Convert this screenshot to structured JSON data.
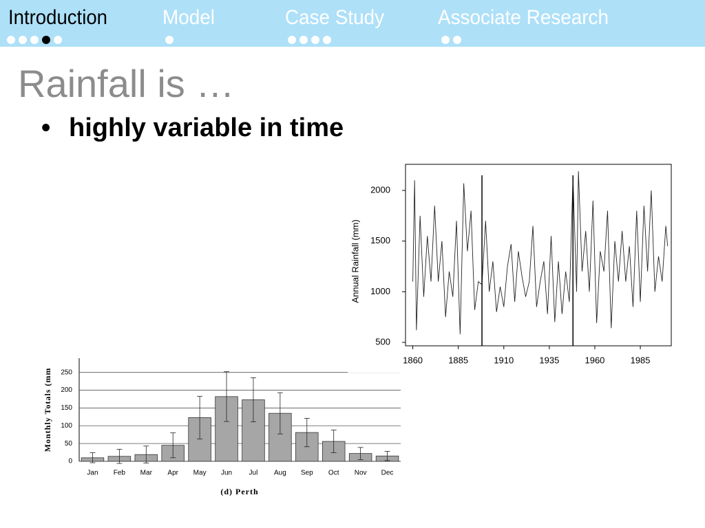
{
  "nav": [
    {
      "label": "Introduction"
    },
    {
      "label": "Model"
    },
    {
      "label": "Case Study"
    },
    {
      "label": "Associate Research"
    }
  ],
  "slide": {
    "title": "Rainfall is …",
    "bullet": "highly variable in time"
  },
  "chart_data": [
    {
      "type": "line",
      "y_label": "Annual Rainfall (mm)",
      "color": "#222222",
      "x": [
        1860,
        1861,
        1862,
        1864,
        1866,
        1868,
        1870,
        1872,
        1874,
        1876,
        1878,
        1880,
        1882,
        1884,
        1886,
        1888,
        1890,
        1892,
        1894,
        1896,
        1898,
        1900,
        1902,
        1904,
        1906,
        1908,
        1910,
        1912,
        1914,
        1916,
        1918,
        1920,
        1922,
        1924,
        1926,
        1928,
        1930,
        1932,
        1934,
        1936,
        1938,
        1940,
        1942,
        1944,
        1946,
        1948,
        1950,
        1951,
        1953,
        1955,
        1957,
        1959,
        1961,
        1963,
        1965,
        1967,
        1969,
        1971,
        1973,
        1975,
        1977,
        1979,
        1981,
        1983,
        1985,
        1987,
        1989,
        1991,
        1993,
        1995,
        1997,
        1999,
        2000
      ],
      "values": [
        1100,
        2100,
        620,
        1750,
        950,
        1550,
        1100,
        1850,
        1100,
        1500,
        750,
        1200,
        950,
        1700,
        580,
        2070,
        1400,
        1800,
        820,
        1100,
        1070,
        1700,
        1000,
        1300,
        800,
        1050,
        850,
        1250,
        1470,
        900,
        1400,
        1150,
        950,
        1100,
        1650,
        850,
        1100,
        1300,
        780,
        1550,
        700,
        1300,
        780,
        1200,
        900,
        2130,
        1000,
        2190,
        1200,
        1600,
        1000,
        1900,
        690,
        1400,
        1200,
        1800,
        640,
        1500,
        1100,
        1600,
        1100,
        1450,
        850,
        1800,
        900,
        1850,
        1200,
        2000,
        1000,
        1350,
        1100,
        1650,
        1450
      ],
      "vlines": [
        1898,
        1948
      ],
      "xlim": [
        1856,
        2002
      ],
      "xticks": [
        1860,
        1885,
        1910,
        1935,
        1960,
        1985
      ],
      "ylim": [
        466,
        2258
      ],
      "yticks": [
        500,
        1000,
        1500,
        2000
      ]
    },
    {
      "type": "bar",
      "y_label": "Monthly Totals (mm",
      "x_label": "(d) Perth",
      "color": "#a6a6a6",
      "grid": true,
      "categories": [
        "Jan",
        "Feb",
        "Mar",
        "Apr",
        "May",
        "Jun",
        "Jul",
        "Aug",
        "Sep",
        "Oct",
        "Nov",
        "Dec"
      ],
      "values": [
        10,
        14,
        19,
        45,
        123,
        182,
        173,
        135,
        81,
        56,
        22,
        15
      ],
      "errors": [
        14,
        20,
        24,
        35,
        60,
        70,
        62,
        58,
        40,
        32,
        17,
        13
      ],
      "ylim": [
        0,
        290
      ],
      "yticks": [
        0,
        50,
        100,
        150,
        200,
        250
      ]
    }
  ]
}
